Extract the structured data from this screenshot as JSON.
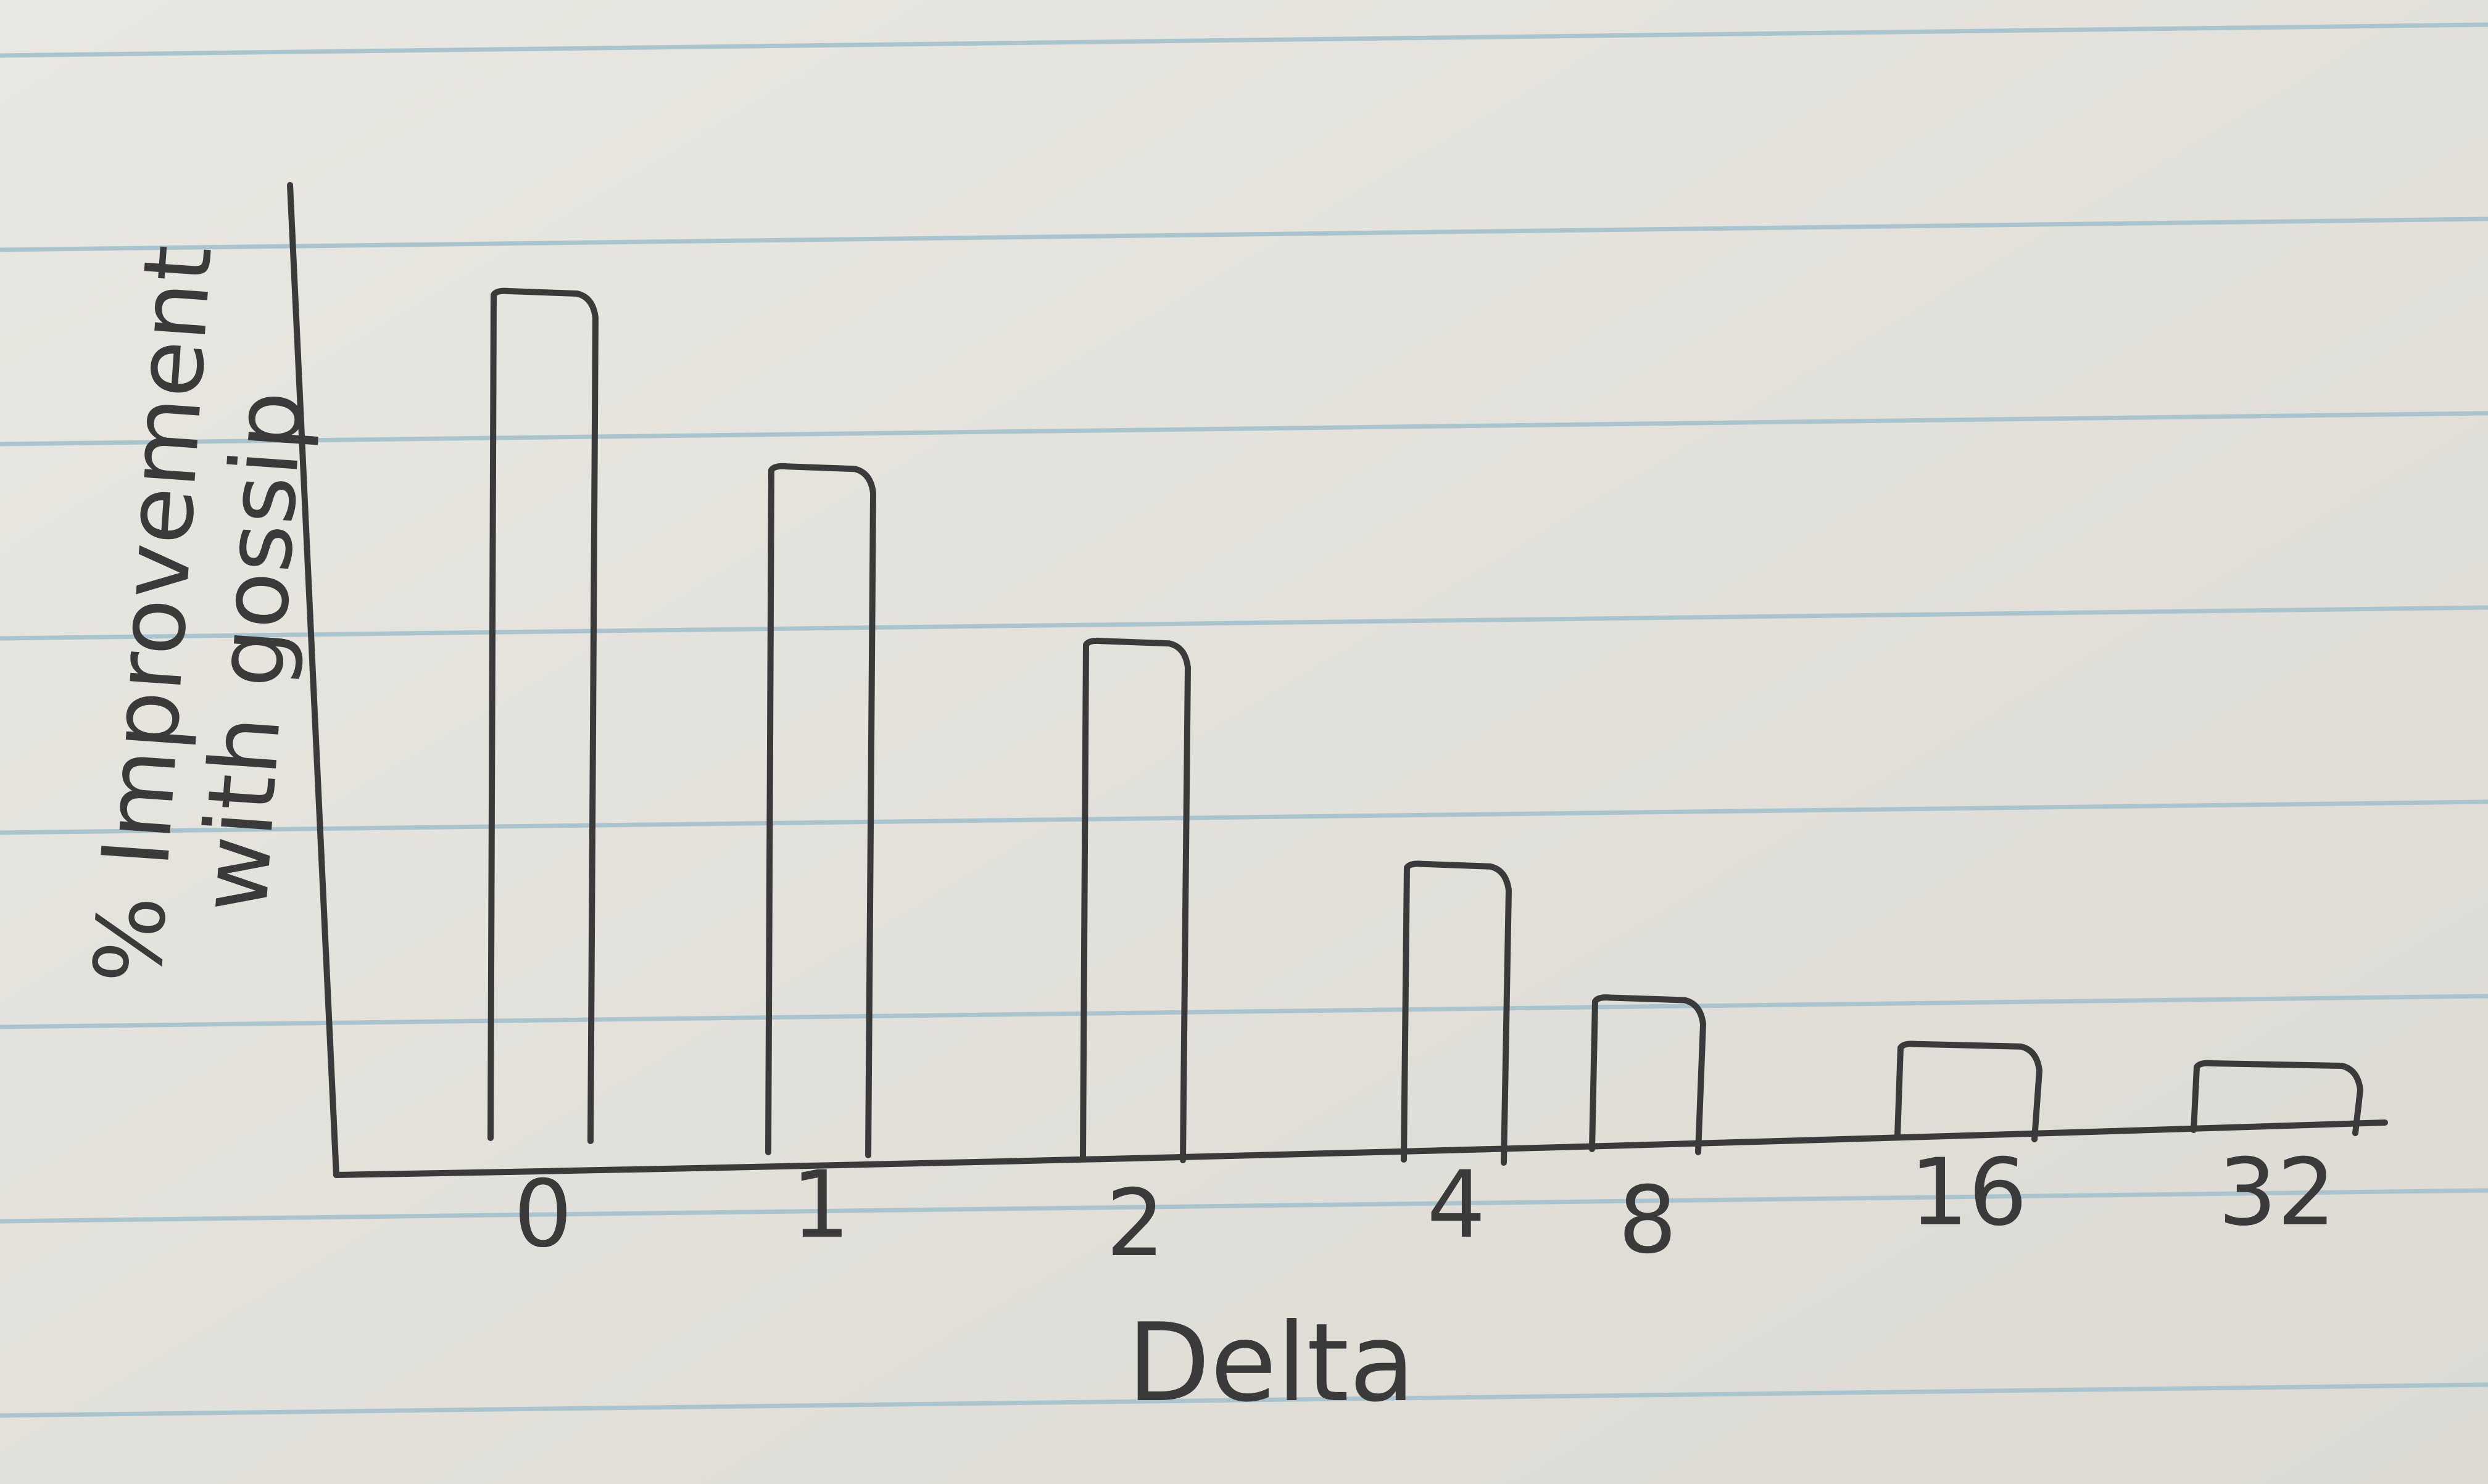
{
  "chart_data": {
    "type": "bar",
    "title": "",
    "xlabel": "Delta",
    "ylabel": [
      "% Improvement",
      "with gossip"
    ],
    "categories": [
      "0",
      "1",
      "2",
      "4",
      "8",
      "16",
      "32"
    ],
    "values": [
      100,
      81,
      61,
      35,
      18,
      11,
      8
    ],
    "ylim": [
      0,
      110
    ],
    "grid": false,
    "legend": "none",
    "y_ticks_shown": false,
    "colors": {
      "paper": "#e4e2dc",
      "rule_line": "#a9c3cf",
      "ink": "#3a3a3a"
    }
  }
}
